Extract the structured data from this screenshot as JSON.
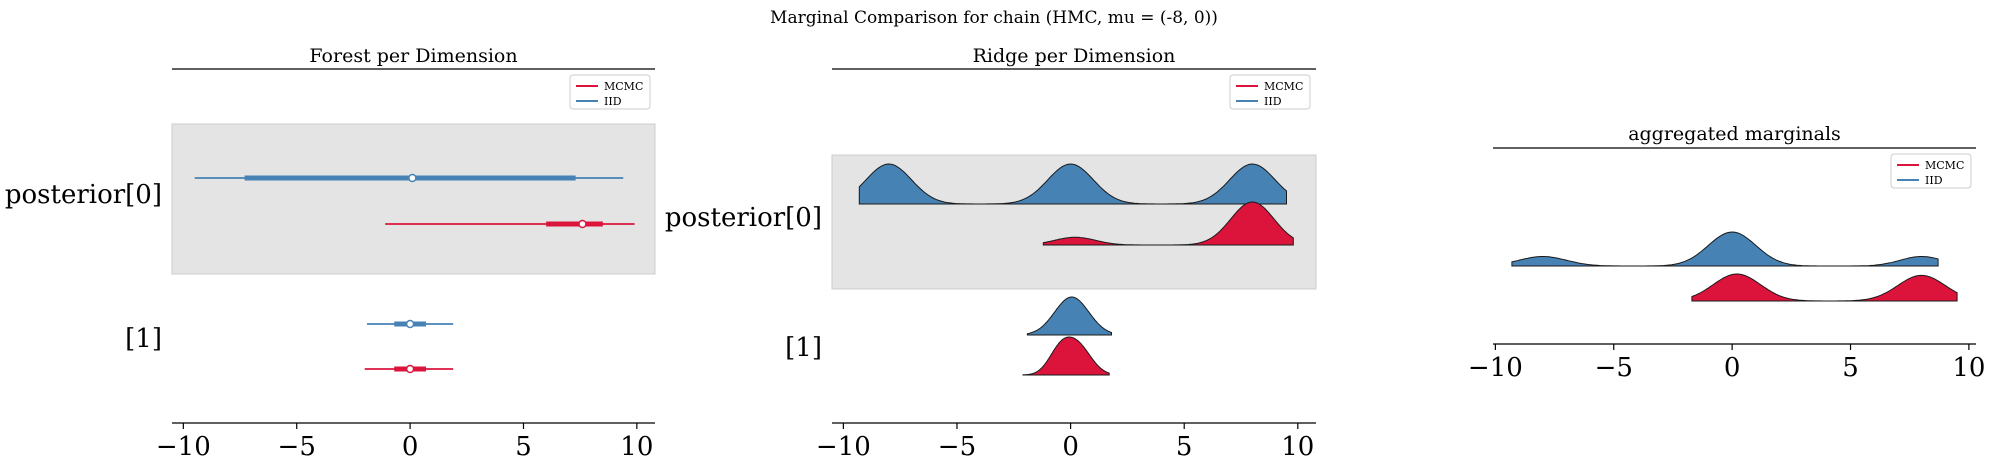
{
  "suptitle": "Marginal Comparison for chain (HMC, mu = (-8, 0))",
  "colors": {
    "MCMC": "#dc143c",
    "IID": "#4682b4",
    "band": "#e4e4e4",
    "band_edge": "#cccccc"
  },
  "chart_data": [
    {
      "type": "forest",
      "title": "Forest per Dimension",
      "xlim": [
        -10.5,
        10.8
      ],
      "xticks": [
        -10,
        -5,
        0,
        5,
        10
      ],
      "xtick_labels": [
        "−10",
        "−5",
        "0",
        "5",
        "10"
      ],
      "legend": {
        "position": "top-right",
        "entries": [
          "MCMC",
          "IID"
        ]
      },
      "rows": [
        {
          "label": "posterior[0]",
          "shaded": true,
          "series": [
            {
              "name": "IID",
              "hdi_low": -9.5,
              "hdi_high": 9.4,
              "iqr_low": -7.3,
              "iqr_high": 7.3,
              "median": 0.1
            },
            {
              "name": "MCMC",
              "hdi_low": -1.1,
              "hdi_high": 9.9,
              "iqr_low": 6.0,
              "iqr_high": 8.5,
              "median": 7.6
            }
          ]
        },
        {
          "label": "[1]",
          "shaded": false,
          "series": [
            {
              "name": "IID",
              "hdi_low": -1.9,
              "hdi_high": 1.9,
              "iqr_low": -0.7,
              "iqr_high": 0.7,
              "median": 0.0
            },
            {
              "name": "MCMC",
              "hdi_low": -2.0,
              "hdi_high": 1.9,
              "iqr_low": -0.7,
              "iqr_high": 0.7,
              "median": 0.0
            }
          ]
        }
      ]
    },
    {
      "type": "ridgeplot",
      "title": "Ridge per Dimension",
      "xlim": [
        -10.5,
        10.8
      ],
      "xticks": [
        -10,
        -5,
        0,
        5,
        10
      ],
      "xtick_labels": [
        "−10",
        "−5",
        "0",
        "5",
        "10"
      ],
      "legend": {
        "position": "top-right",
        "entries": [
          "MCMC",
          "IID"
        ]
      },
      "rows": [
        {
          "label": "posterior[0]",
          "shaded": true,
          "series": [
            {
              "name": "IID",
              "range": [
                -9.3,
                9.5
              ],
              "components": [
                {
                  "mu": -8,
                  "sd": 1.0,
                  "w": 1
                },
                {
                  "mu": 0,
                  "sd": 1.0,
                  "w": 1
                },
                {
                  "mu": 8,
                  "sd": 1.0,
                  "w": 1
                }
              ]
            },
            {
              "name": "MCMC",
              "range": [
                -1.2,
                9.8
              ],
              "components": [
                {
                  "mu": 0.2,
                  "sd": 0.9,
                  "w": 0.18
                },
                {
                  "mu": 8,
                  "sd": 0.95,
                  "w": 1
                }
              ]
            }
          ]
        },
        {
          "label": "[1]",
          "shaded": false,
          "series": [
            {
              "name": "IID",
              "range": [
                -1.9,
                1.8
              ],
              "components": [
                {
                  "mu": 0.05,
                  "sd": 0.75,
                  "w": 1
                }
              ]
            },
            {
              "name": "MCMC",
              "range": [
                -2.1,
                1.7
              ],
              "components": [
                {
                  "mu": -0.5,
                  "sd": 0.5,
                  "w": 0.7
                },
                {
                  "mu": 0.3,
                  "sd": 0.6,
                  "w": 1
                }
              ]
            }
          ]
        }
      ]
    },
    {
      "type": "ridgeplot",
      "title": "aggregated marginals",
      "xlim": [
        -10.1,
        10.3
      ],
      "xticks": [
        -10,
        -5,
        0,
        5,
        10
      ],
      "xtick_labels": [
        "−10",
        "−5",
        "0",
        "5",
        "10"
      ],
      "legend": {
        "position": "top-right",
        "entries": [
          "MCMC",
          "IID"
        ]
      },
      "rows": [
        {
          "label": "",
          "shaded": false,
          "series": [
            {
              "name": "IID",
              "range": [
                -9.3,
                8.7
              ],
              "components": [
                {
                  "mu": -8,
                  "sd": 1.0,
                  "w": 0.28
                },
                {
                  "mu": 0,
                  "sd": 1.0,
                  "w": 1
                },
                {
                  "mu": 8,
                  "sd": 0.9,
                  "w": 0.28
                }
              ]
            },
            {
              "name": "MCMC",
              "range": [
                -1.7,
                9.5
              ],
              "components": [
                {
                  "mu": 0.2,
                  "sd": 1.0,
                  "w": 1
                },
                {
                  "mu": 8,
                  "sd": 1.0,
                  "w": 0.95
                }
              ]
            }
          ]
        }
      ]
    }
  ]
}
